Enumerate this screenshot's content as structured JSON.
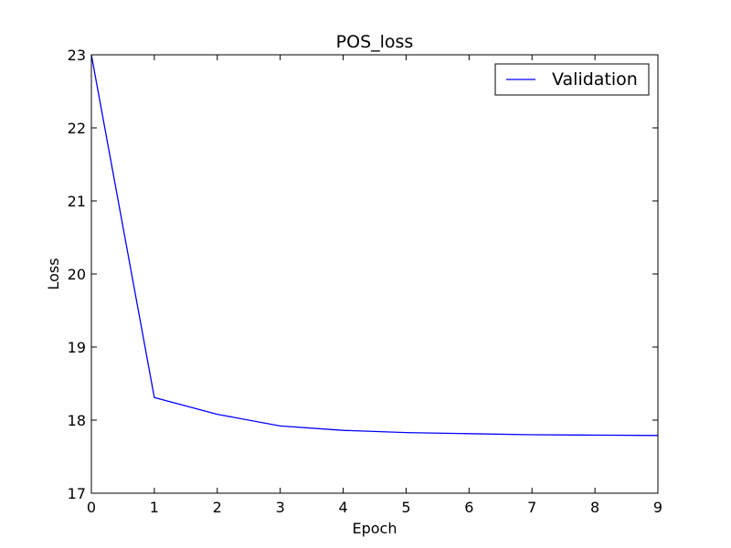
{
  "chart_data": {
    "type": "line",
    "title": "POS_loss",
    "xlabel": "Epoch",
    "ylabel": "Loss",
    "xlim": [
      0,
      9
    ],
    "ylim": [
      17,
      23
    ],
    "xticks": [
      "0",
      "1",
      "2",
      "3",
      "4",
      "5",
      "6",
      "7",
      "8",
      "9"
    ],
    "yticks": [
      "17",
      "18",
      "19",
      "20",
      "21",
      "22",
      "23"
    ],
    "grid": false,
    "legend_position": "top-right",
    "series": [
      {
        "name": "Validation",
        "color": "#0000ff",
        "x": [
          0,
          1,
          2,
          3,
          4,
          5,
          6,
          7,
          8,
          9
        ],
        "y": [
          23.0,
          18.31,
          18.08,
          17.92,
          17.86,
          17.83,
          17.815,
          17.8,
          17.795,
          17.79
        ]
      }
    ]
  }
}
